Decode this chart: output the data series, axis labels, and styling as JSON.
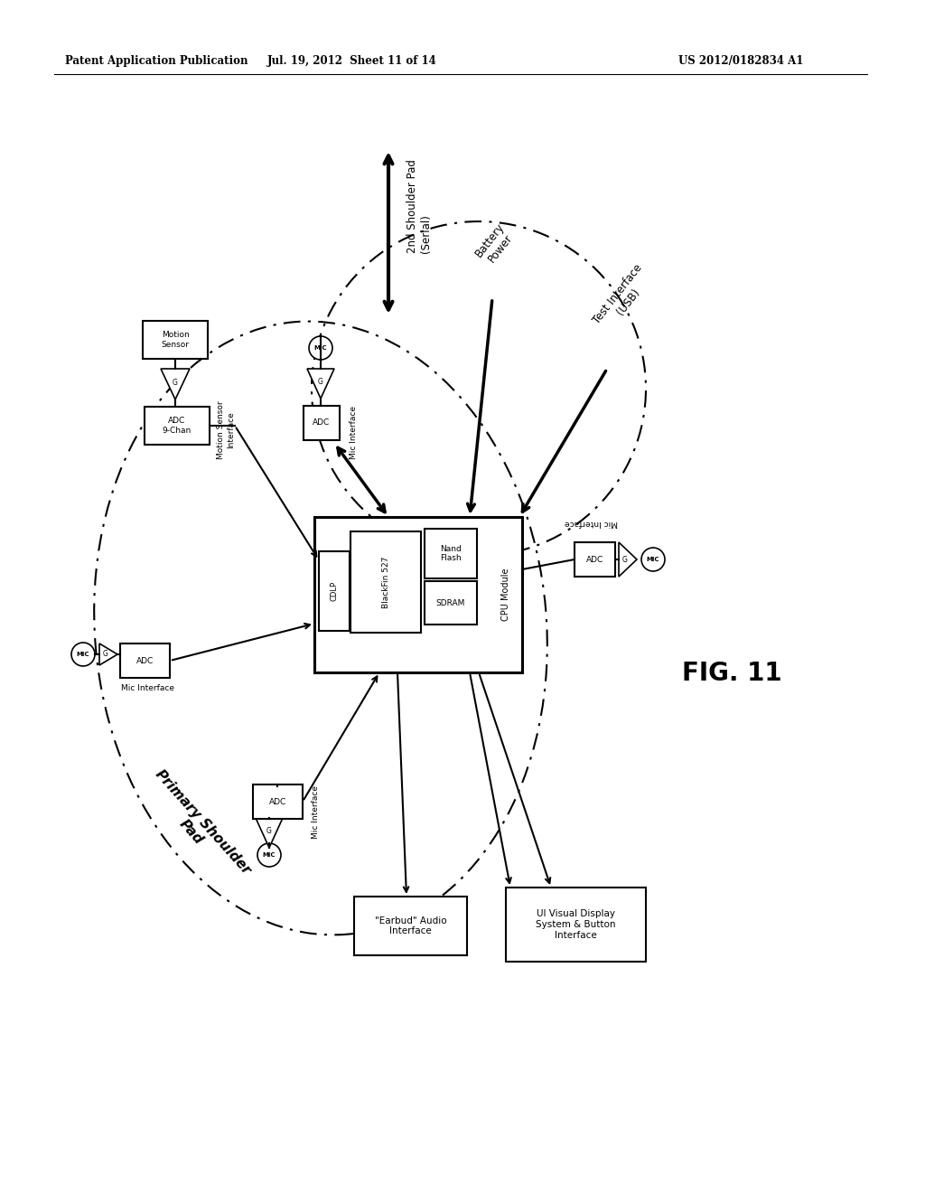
{
  "header_left": "Patent Application Publication",
  "header_mid": "Jul. 19, 2012  Sheet 11 of 14",
  "header_right": "US 2012/0182834 A1",
  "fig_label": "FIG. 11",
  "bg_color": "#ffffff",
  "fg_color": "#000000"
}
